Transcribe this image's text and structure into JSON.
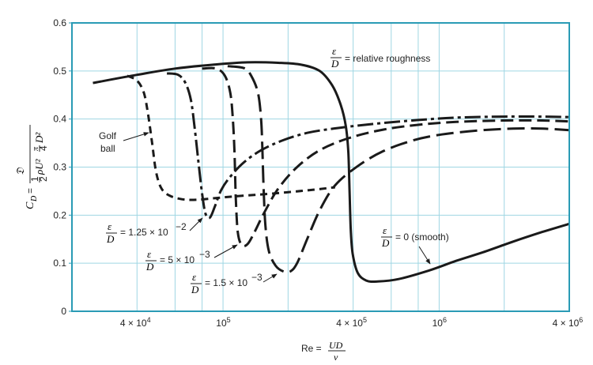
{
  "chart_data": {
    "type": "line",
    "x_scale": "log",
    "xlim": [
      20000,
      4000000
    ],
    "ylim": [
      0,
      0.6
    ],
    "grid": true,
    "colors": {
      "frame": "#2a9bb5",
      "grid": "#9fd6e3",
      "curve": "#1a1a1a"
    },
    "ylabel": {
      "lhs": "C",
      "lhs_sub": "D",
      "eq": "=",
      "numerator": "𝔇",
      "half_num": "1",
      "half_den": "2",
      "rho_u": "ρU²",
      "pi_num": "π",
      "pi_den": "4",
      "d2": "D²"
    },
    "xlabel": {
      "prefix": "Re =",
      "numerator": "UD",
      "denominator": "ν"
    },
    "y_ticks": [
      {
        "value": 0,
        "label": "0"
      },
      {
        "value": 0.1,
        "label": "0.1"
      },
      {
        "value": 0.2,
        "label": "0.2"
      },
      {
        "value": 0.3,
        "label": "0.3"
      },
      {
        "value": 0.4,
        "label": "0.4"
      },
      {
        "value": 0.5,
        "label": "0.5"
      },
      {
        "value": 0.6,
        "label": "0.6"
      }
    ],
    "x_ticks": [
      {
        "value": 40000,
        "mantissa": "4 × 10",
        "exp": "4"
      },
      {
        "value": 100000,
        "mantissa": "10",
        "exp": "5"
      },
      {
        "value": 400000,
        "mantissa": "4 × 10",
        "exp": "5"
      },
      {
        "value": 1000000,
        "mantissa": "10",
        "exp": "6"
      },
      {
        "value": 4000000,
        "mantissa": "4 × 10",
        "exp": "6"
      }
    ],
    "x_gridlines": [
      40000,
      60000,
      80000,
      100000,
      200000,
      400000,
      600000,
      800000,
      1000000,
      2000000
    ],
    "series": [
      {
        "key": "smooth",
        "dash": "none",
        "points": [
          [
            25000,
            0.475
          ],
          [
            40000,
            0.492
          ],
          [
            60000,
            0.505
          ],
          [
            90000,
            0.513
          ],
          [
            130000,
            0.518
          ],
          [
            180000,
            0.517
          ],
          [
            230000,
            0.513
          ],
          [
            280000,
            0.5
          ],
          [
            320000,
            0.47
          ],
          [
            350000,
            0.43
          ],
          [
            370000,
            0.385
          ],
          [
            380000,
            0.33
          ],
          [
            385000,
            0.25
          ],
          [
            390000,
            0.17
          ],
          [
            398000,
            0.12
          ],
          [
            420000,
            0.08
          ],
          [
            460000,
            0.064
          ],
          [
            520000,
            0.062
          ],
          [
            650000,
            0.067
          ],
          [
            900000,
            0.085
          ],
          [
            1200000,
            0.105
          ],
          [
            1600000,
            0.123
          ],
          [
            2200000,
            0.145
          ],
          [
            3000000,
            0.165
          ],
          [
            4000000,
            0.182
          ]
        ]
      },
      {
        "key": "rough-1.5e-3",
        "dash": "22,8",
        "points": [
          [
            105000,
            0.51
          ],
          [
            125000,
            0.506
          ],
          [
            135000,
            0.49
          ],
          [
            145000,
            0.455
          ],
          [
            150000,
            0.4
          ],
          [
            152000,
            0.34
          ],
          [
            154000,
            0.26
          ],
          [
            157000,
            0.18
          ],
          [
            163000,
            0.125
          ],
          [
            175000,
            0.095
          ],
          [
            190000,
            0.083
          ],
          [
            205000,
            0.083
          ],
          [
            220000,
            0.1
          ],
          [
            245000,
            0.15
          ],
          [
            280000,
            0.21
          ],
          [
            330000,
            0.262
          ],
          [
            420000,
            0.302
          ],
          [
            550000,
            0.333
          ],
          [
            750000,
            0.355
          ],
          [
            1000000,
            0.367
          ],
          [
            1500000,
            0.376
          ],
          [
            2200000,
            0.38
          ],
          [
            3000000,
            0.38
          ],
          [
            4000000,
            0.377
          ]
        ]
      },
      {
        "key": "rough-5e-3",
        "dash": "16,7",
        "points": [
          [
            80000,
            0.505
          ],
          [
            93000,
            0.505
          ],
          [
            102000,
            0.49
          ],
          [
            108000,
            0.455
          ],
          [
            111000,
            0.4
          ],
          [
            113000,
            0.33
          ],
          [
            114500,
            0.24
          ],
          [
            117000,
            0.165
          ],
          [
            122000,
            0.138
          ],
          [
            130000,
            0.14
          ],
          [
            140000,
            0.165
          ],
          [
            155000,
            0.205
          ],
          [
            180000,
            0.255
          ],
          [
            220000,
            0.3
          ],
          [
            280000,
            0.335
          ],
          [
            380000,
            0.36
          ],
          [
            550000,
            0.378
          ],
          [
            800000,
            0.388
          ],
          [
            1200000,
            0.394
          ],
          [
            2000000,
            0.397
          ],
          [
            3000000,
            0.397
          ],
          [
            4000000,
            0.395
          ]
        ]
      },
      {
        "key": "rough-1.25e-2",
        "dash": "20,5,4,5",
        "points": [
          [
            55000,
            0.495
          ],
          [
            62000,
            0.492
          ],
          [
            67000,
            0.475
          ],
          [
            71000,
            0.44
          ],
          [
            74000,
            0.38
          ],
          [
            77000,
            0.31
          ],
          [
            80000,
            0.245
          ],
          [
            83000,
            0.203
          ],
          [
            87000,
            0.195
          ],
          [
            92000,
            0.22
          ],
          [
            98000,
            0.252
          ],
          [
            108000,
            0.28
          ],
          [
            125000,
            0.31
          ],
          [
            150000,
            0.335
          ],
          [
            190000,
            0.356
          ],
          [
            250000,
            0.372
          ],
          [
            350000,
            0.382
          ],
          [
            500000,
            0.39
          ],
          [
            800000,
            0.398
          ],
          [
            1200000,
            0.403
          ],
          [
            2000000,
            0.405
          ],
          [
            3000000,
            0.405
          ],
          [
            4000000,
            0.404
          ]
        ]
      },
      {
        "key": "golf-ball",
        "dash": "9,6",
        "points": [
          [
            36000,
            0.49
          ],
          [
            40000,
            0.48
          ],
          [
            43000,
            0.455
          ],
          [
            45000,
            0.41
          ],
          [
            47000,
            0.35
          ],
          [
            49000,
            0.29
          ],
          [
            52000,
            0.255
          ],
          [
            57000,
            0.24
          ],
          [
            65000,
            0.233
          ],
          [
            75000,
            0.232
          ],
          [
            90000,
            0.235
          ],
          [
            120000,
            0.24
          ],
          [
            170000,
            0.245
          ],
          [
            250000,
            0.252
          ],
          [
            330000,
            0.258
          ]
        ]
      }
    ],
    "annotations": {
      "relative_roughness": {
        "num": "ε",
        "den": "D",
        "text": "= relative roughness"
      },
      "golf": {
        "line1": "Golf",
        "line2": "ball"
      },
      "label_125": {
        "num": "ε",
        "den": "D",
        "text": "= 1.25 × 10",
        "exp": "−2"
      },
      "label_5": {
        "num": "ε",
        "den": "D",
        "text": "= 5 × 10",
        "exp": "−3"
      },
      "label_15": {
        "num": "ε",
        "den": "D",
        "text": "= 1.5 × 10",
        "exp": "−3"
      },
      "label_smooth": {
        "num": "ε",
        "den": "D",
        "text": "= 0 (smooth)"
      }
    }
  }
}
